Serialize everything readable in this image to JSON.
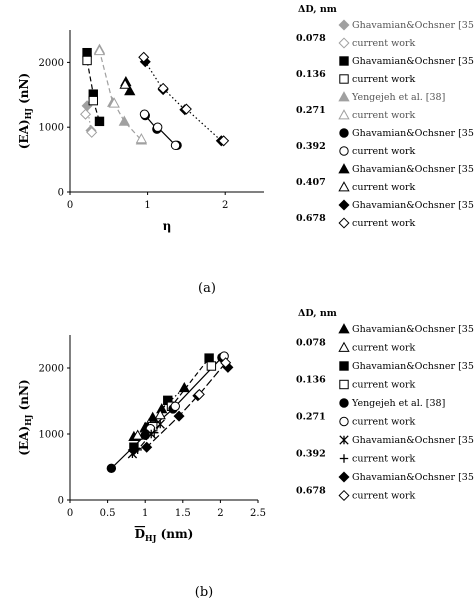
{
  "chart_data": [
    {
      "panel": "(a)",
      "type": "scatter",
      "ylabel": "(EA)",
      "ylabel_sub": "HJ",
      "ylabel_unit": "(nN)",
      "xlabel": "η",
      "xlim": [
        0,
        2.5
      ],
      "ylim": [
        0,
        2500
      ],
      "xticks": [
        "0",
        "1",
        "2"
      ],
      "yticks": [
        "0",
        "1000",
        "2000"
      ],
      "legend_title": "ΔD, nm",
      "series": [
        {
          "name": "Ghavamian&Ochsner [35]",
          "marker": "diamond",
          "fill": "gray",
          "color": "#a0a0a0",
          "dash": "dot",
          "points": [
            [
              0.22,
              1330
            ],
            [
              0.27,
              950
            ]
          ]
        },
        {
          "name": "current work",
          "marker": "diamond",
          "fill": "none",
          "color": "#a0a0a0",
          "dash": "dot",
          "points": [
            [
              0.2,
              1200
            ],
            [
              0.28,
              920
            ]
          ]
        },
        {
          "name": "Ghavamian&Ochsner [35]",
          "marker": "square",
          "fill": "black",
          "color": "#000000",
          "dash": "dash",
          "points": [
            [
              0.22,
              2150
            ],
            [
              0.3,
              1510
            ],
            [
              0.38,
              1090
            ]
          ]
        },
        {
          "name": "current work",
          "marker": "square",
          "fill": "none",
          "color": "#000000",
          "dash": "dash",
          "points": [
            [
              0.22,
              2030
            ],
            [
              0.3,
              1410
            ]
          ]
        },
        {
          "name": "Yengejeh et al. [38]",
          "marker": "triangle",
          "fill": "gray",
          "color": "#a0a0a0",
          "dash": "dash",
          "points": [
            [
              0.38,
              2200
            ],
            [
              0.55,
              1380
            ],
            [
              0.7,
              1090
            ],
            [
              0.92,
              800
            ]
          ]
        },
        {
          "name": "current work",
          "marker": "triangle",
          "fill": "none",
          "color": "#a0a0a0",
          "dash": "dash",
          "points": [
            [
              0.38,
              2180
            ],
            [
              0.57,
              1370
            ],
            [
              0.92,
              820
            ]
          ]
        },
        {
          "name": "Ghavamian&Ochsner [35]",
          "marker": "circle",
          "fill": "black",
          "color": "#000000",
          "dash": "solid",
          "points": [
            [
              0.97,
              1180
            ],
            [
              1.12,
              970
            ],
            [
              1.38,
              720
            ]
          ]
        },
        {
          "name": "current work",
          "marker": "circle",
          "fill": "none",
          "color": "#000000",
          "dash": "solid",
          "points": [
            [
              0.96,
              1200
            ],
            [
              1.13,
              1000
            ],
            [
              1.36,
              720
            ]
          ]
        },
        {
          "name": "Ghavamian&Ochsner [35]",
          "marker": "triangle",
          "fill": "black",
          "color": "#000000",
          "dash": "none",
          "points": [
            [
              0.72,
              1700
            ],
            [
              0.77,
              1560
            ]
          ]
        },
        {
          "name": "current work",
          "marker": "triangle",
          "fill": "none",
          "color": "#000000",
          "dash": "none",
          "points": [
            [
              0.71,
              1660
            ]
          ]
        },
        {
          "name": "Ghavamian&Ochsner [35]",
          "marker": "diamond",
          "fill": "black",
          "color": "#000000",
          "dash": "dot",
          "points": [
            [
              0.97,
              2010
            ],
            [
              1.2,
              1580
            ],
            [
              1.48,
              1270
            ],
            [
              1.95,
              790
            ]
          ]
        },
        {
          "name": "current work",
          "marker": "diamond",
          "fill": "none",
          "color": "#000000",
          "dash": "dot",
          "points": [
            [
              0.95,
              2080
            ],
            [
              1.2,
              1600
            ],
            [
              1.5,
              1280
            ],
            [
              1.98,
              790
            ]
          ]
        }
      ],
      "legend_values": [
        "0.078",
        "0.136",
        "0.271",
        "0.392",
        "0.407",
        "0.678"
      ]
    },
    {
      "panel": "(b)",
      "type": "scatter",
      "ylabel": "(EA)",
      "ylabel_sub": "HJ",
      "ylabel_unit": "(nN)",
      "xlabel": "D",
      "xlabel_sub": "HJ",
      "xlabel_unit": "(nm)",
      "xlim": [
        0,
        2.5
      ],
      "ylim": [
        0,
        2500
      ],
      "xticks": [
        "0",
        "0.5",
        "1",
        "1.5",
        "2",
        "2.5"
      ],
      "yticks": [
        "0",
        "1000",
        "2000"
      ],
      "legend_title": "ΔD, nm",
      "series": [
        {
          "name": "Ghavamian&Ochsner [35]",
          "marker": "triangle",
          "fill": "black",
          "color": "#000000",
          "dash": "dot",
          "points": [
            [
              0.85,
              960
            ],
            [
              1.0,
              1100
            ],
            [
              1.1,
              1250
            ],
            [
              1.22,
              1380
            ],
            [
              1.52,
              1700
            ]
          ]
        },
        {
          "name": "current work",
          "marker": "triangle",
          "fill": "none",
          "color": "#000000",
          "dash": "dot",
          "points": [
            [
              0.9,
              980
            ],
            [
              1.05,
              1150
            ],
            [
              1.2,
              1290
            ]
          ]
        },
        {
          "name": "Ghavamian&Ochsner [35]",
          "marker": "square",
          "fill": "black",
          "color": "#000000",
          "dash": "dash",
          "points": [
            [
              0.85,
              800
            ],
            [
              1.05,
              1100
            ],
            [
              1.3,
              1510
            ],
            [
              1.85,
              2150
            ]
          ]
        },
        {
          "name": "current work",
          "marker": "square",
          "fill": "none",
          "color": "#000000",
          "dash": "dash",
          "points": [
            [
              1.1,
              1110
            ],
            [
              1.35,
              1420
            ],
            [
              1.88,
              2030
            ]
          ]
        },
        {
          "name": "Yengejeh et al. [38]",
          "marker": "circle",
          "fill": "black",
          "color": "#000000",
          "dash": "solid",
          "points": [
            [
              0.55,
              480
            ],
            [
              1.0,
              980
            ],
            [
              1.37,
              1380
            ],
            [
              2.02,
              2160
            ]
          ]
        },
        {
          "name": "current work",
          "marker": "circle",
          "fill": "none",
          "color": "#000000",
          "dash": "solid",
          "points": [
            [
              1.07,
              1080
            ],
            [
              1.4,
              1420
            ],
            [
              2.05,
              2180
            ]
          ]
        },
        {
          "name": "Ghavamian&Ochsner [35]",
          "marker": "cross",
          "fill": "none",
          "color": "#000000",
          "dash": "dashdot",
          "points": [
            [
              0.83,
              700
            ],
            [
              1.08,
              1000
            ],
            [
              1.2,
              1150
            ]
          ]
        },
        {
          "name": "current work",
          "marker": "plus",
          "fill": "none",
          "color": "#000000",
          "dash": "dashdot",
          "points": [
            [
              0.9,
              760
            ],
            [
              1.12,
              1020
            ]
          ]
        },
        {
          "name": "Ghavamian&Ochsner [35]",
          "marker": "diamond",
          "fill": "black",
          "color": "#000000",
          "dash": "longdash",
          "points": [
            [
              0.85,
              760
            ],
            [
              1.02,
              800
            ],
            [
              1.45,
              1270
            ],
            [
              1.7,
              1580
            ],
            [
              2.1,
              2010
            ]
          ]
        },
        {
          "name": "current work",
          "marker": "diamond",
          "fill": "none",
          "color": "#000000",
          "dash": "longdash",
          "points": [
            [
              1.72,
              1600
            ],
            [
              2.07,
              2080
            ]
          ]
        }
      ],
      "legend_values": [
        "0.078",
        "0.136",
        "0.271",
        "0.392",
        "0.678"
      ]
    }
  ]
}
